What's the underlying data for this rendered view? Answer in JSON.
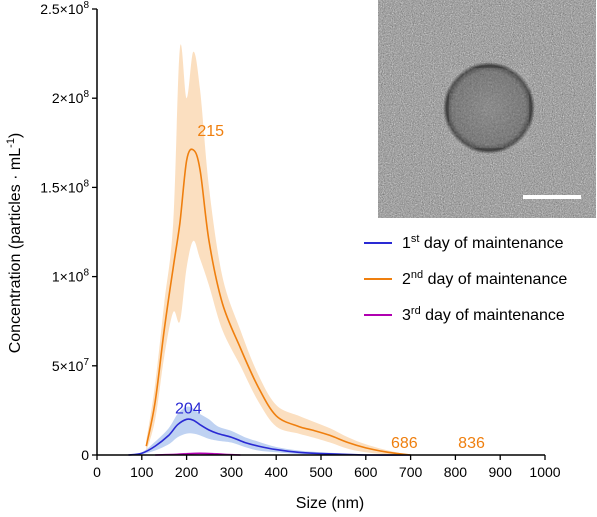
{
  "chart_data": {
    "type": "line",
    "xlabel": "Size (nm)",
    "ylabel": "Concentration (particles · mL",
    "ylabel_sup": "-1",
    "ylabel_close": ")",
    "xlim": [
      0,
      1000
    ],
    "ylim": [
      0,
      250000000
    ],
    "x_ticks": [
      0,
      100,
      200,
      300,
      400,
      500,
      600,
      700,
      800,
      900,
      1000
    ],
    "x_tick_labels": [
      "0",
      "100",
      "200",
      "300",
      "400",
      "500",
      "600",
      "700",
      "800",
      "900",
      "1000"
    ],
    "y_ticks": [
      0,
      50000000,
      100000000,
      150000000,
      200000000,
      250000000
    ],
    "y_tick_labels": [
      {
        "base": "0",
        "exp": ""
      },
      {
        "base": "5×10",
        "exp": "7"
      },
      {
        "base": "1×10",
        "exp": "8"
      },
      {
        "base": "1.5×10",
        "exp": "8"
      },
      {
        "base": "2×10",
        "exp": "8"
      },
      {
        "base": "2.5×10",
        "exp": "8"
      }
    ],
    "grid": false,
    "legend_position": "right",
    "series": [
      {
        "name_pre": "1",
        "name_sup": "st",
        "name_post": " day of maintenance",
        "color": "#2a2ad4",
        "band_color": "#a9c3ee",
        "x": [
          70,
          100,
          130,
          160,
          180,
          200,
          215,
          230,
          250,
          270,
          300,
          330,
          360,
          400,
          450,
          500,
          550,
          600,
          700
        ],
        "y": [
          0,
          1000000,
          5000000,
          11000000,
          17000000,
          20000000,
          19500000,
          17000000,
          14000000,
          12000000,
          10000000,
          7000000,
          5000000,
          3000000,
          1500000,
          800000,
          400000,
          0,
          0
        ],
        "y_low": [
          0,
          500000,
          2500000,
          6000000,
          10000000,
          12000000,
          12000000,
          11000000,
          9000000,
          8000000,
          7000000,
          4500000,
          2500000,
          1500000,
          500000,
          200000,
          0,
          0,
          0
        ],
        "y_high": [
          0,
          1500000,
          7500000,
          15000000,
          23000000,
          27000000,
          26000000,
          23000000,
          20000000,
          16000000,
          13500000,
          10000000,
          7500000,
          4500000,
          2500000,
          1500000,
          800000,
          0,
          0
        ]
      },
      {
        "name_pre": "2",
        "name_sup": "nd",
        "name_post": " day of maintenance",
        "color": "#ef7f0e",
        "band_color": "#f9d4ab",
        "x": [
          110,
          130,
          150,
          170,
          185,
          200,
          215,
          230,
          250,
          280,
          320,
          360,
          400,
          450,
          480,
          520,
          560,
          600,
          650,
          700
        ],
        "y": [
          5000000,
          30000000,
          70000000,
          105000000,
          130000000,
          165000000,
          171000000,
          160000000,
          120000000,
          85000000,
          60000000,
          38000000,
          22000000,
          16000000,
          14000000,
          11000000,
          7000000,
          4000000,
          1500000,
          0
        ],
        "y_low": [
          2000000,
          20000000,
          55000000,
          80000000,
          75000000,
          105000000,
          120000000,
          110000000,
          95000000,
          70000000,
          50000000,
          30000000,
          16000000,
          12000000,
          10000000,
          7000000,
          3500000,
          1500000,
          300000,
          0
        ],
        "y_high": [
          8000000,
          40000000,
          85000000,
          130000000,
          228000000,
          200000000,
          226000000,
          205000000,
          150000000,
          100000000,
          70000000,
          45000000,
          28000000,
          22000000,
          19000000,
          15000000,
          10000000,
          6000000,
          2500000,
          0
        ]
      },
      {
        "name_pre": "3",
        "name_sup": "rd",
        "name_post": " day of maintenance",
        "color": "#b000b0",
        "band_color": "#e6a8e6",
        "x": [
          130,
          170,
          200,
          230,
          260,
          290,
          320
        ],
        "y": [
          0,
          300000,
          700000,
          900000,
          700000,
          300000,
          0
        ],
        "y_low": [
          0,
          0,
          200000,
          300000,
          200000,
          0,
          0
        ],
        "y_high": [
          0,
          700000,
          1300000,
          1600000,
          1300000,
          600000,
          0
        ]
      }
    ],
    "annotations": [
      {
        "text": "215",
        "x": 215,
        "y": 171000000,
        "color": "#ef7f0e"
      },
      {
        "text": "204",
        "x": 204,
        "y": 20000000,
        "color": "#2a2ad4"
      },
      {
        "text": "686",
        "x": 686,
        "y": 0,
        "color": "#ef7f0e"
      },
      {
        "text": "836",
        "x": 836,
        "y": 0,
        "color": "#ef7f0e"
      }
    ]
  },
  "inset": {
    "colors": {
      "background": "#8a8a8a",
      "scale_bar": "#ffffff",
      "particle": "#3a3a3a"
    }
  }
}
